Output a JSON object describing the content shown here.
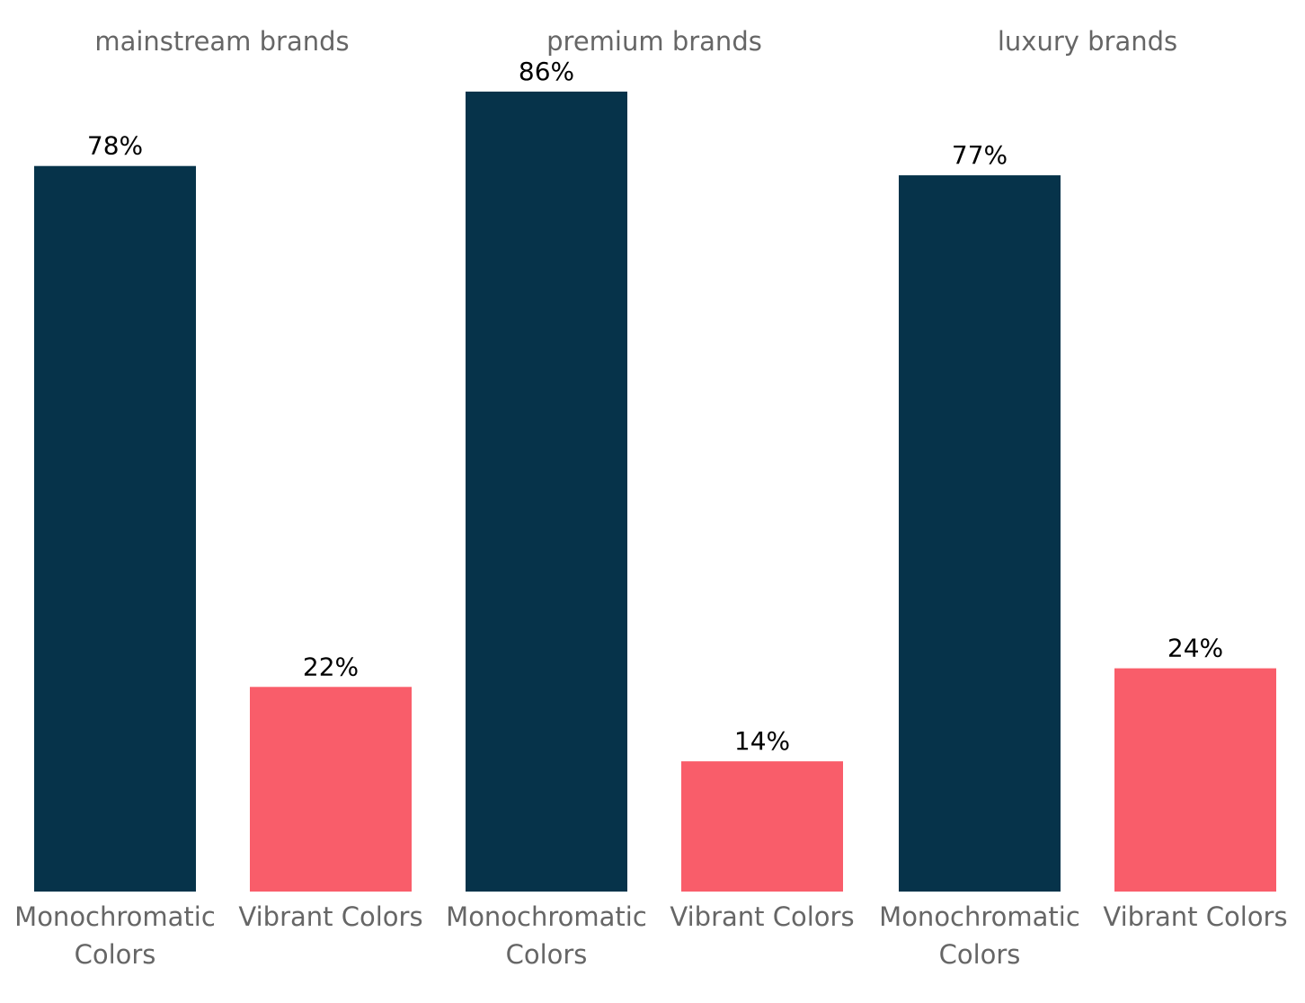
{
  "chart_data": {
    "type": "bar",
    "title": "",
    "ylabel": "",
    "ylim": [
      0,
      100
    ],
    "grid": false,
    "colors": {
      "Monochromatic Colors": "#06334a",
      "Vibrant Colors": "#f95d6a"
    },
    "panels": [
      {
        "title": "mainstream brands",
        "categories": [
          "Monochromatic Colors",
          "Vibrant Colors"
        ],
        "values": [
          78,
          22
        ],
        "labels": [
          "78%",
          "22%"
        ]
      },
      {
        "title": "premium brands",
        "categories": [
          "Monochromatic Colors",
          "Vibrant Colors"
        ],
        "values": [
          86,
          14
        ],
        "labels": [
          "86%",
          "14%"
        ]
      },
      {
        "title": "luxury brands",
        "categories": [
          "Monochromatic Colors",
          "Vibrant Colors"
        ],
        "values": [
          77,
          24
        ],
        "labels": [
          "77%",
          "24%"
        ]
      }
    ]
  }
}
